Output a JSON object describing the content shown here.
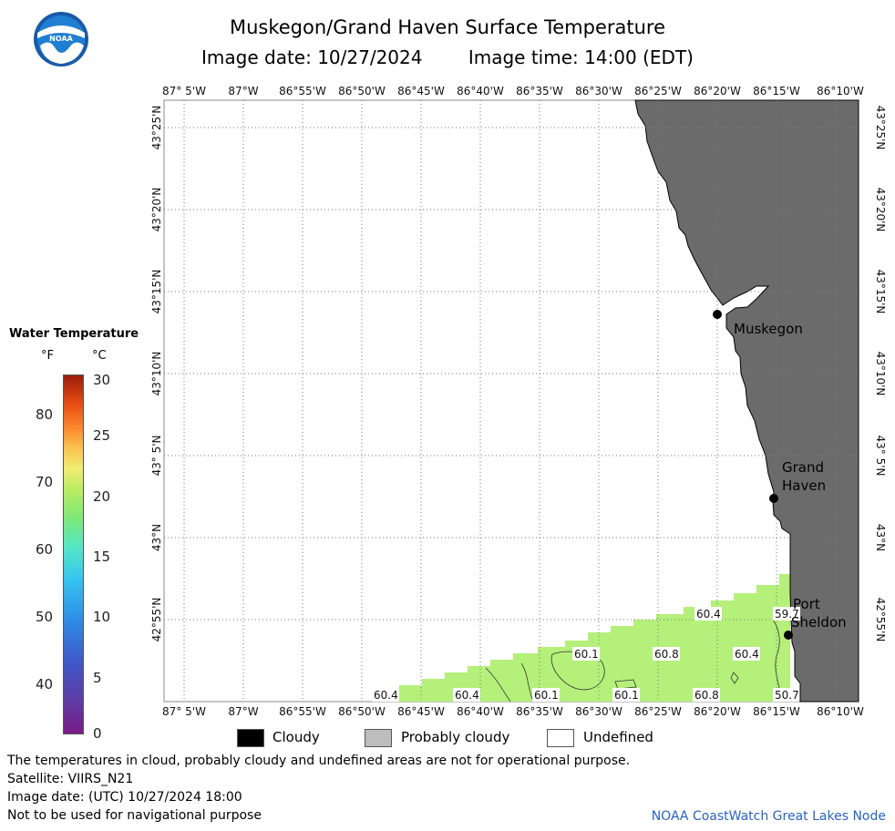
{
  "title": "Muskegon/Grand Haven Surface Temperature",
  "image_date": "Image date: 10/27/2024",
  "image_time": "Image time: 14:00 (EDT)",
  "logo_text": "NOAA",
  "lon_labels": [
    "87° 5'W",
    "87°W",
    "86°55'W",
    "86°50'W",
    "86°45'W",
    "86°40'W",
    "86°35'W",
    "86°30'W",
    "86°25'W",
    "86°20'W",
    "86°15'W",
    "86°10'W"
  ],
  "lat_labels": [
    "43°25'N",
    "43°20'N",
    "43°15'N",
    "43°10'N",
    "43° 5'N",
    "43°N",
    "42°55'N"
  ],
  "places": [
    {
      "name": "Muskegon"
    },
    {
      "name": "Grand\nHaven"
    },
    {
      "name": "Port\nSheldon"
    }
  ],
  "contour_labels": [
    "60.4",
    "59.7",
    "60.1",
    "60.8",
    "60.4",
    "60.4",
    "60.4",
    "60.1",
    "60.1",
    "60.8",
    "50.7"
  ],
  "legend": {
    "title": "Water Temperature",
    "unit_f": "°F",
    "unit_c": "°C",
    "ticks_f": [
      "80",
      "70",
      "60",
      "50",
      "40"
    ],
    "ticks_c": [
      "30",
      "25",
      "20",
      "15",
      "10",
      "5",
      "0"
    ]
  },
  "categories": [
    "Cloudy",
    "Probably cloudy",
    "Undefined"
  ],
  "colors": {
    "land": "#6b6b6b",
    "water_warm": "#b5f07a",
    "cloudy": "#000000",
    "probably_cloudy": "#bdbdbd",
    "undefined": "#ffffff",
    "credit": "#2a63c3"
  },
  "footer": [
    "The temperatures in cloud, probably cloudy and undefined areas are not for operational purpose.",
    "Satellite: VIIRS_N21",
    "Image date: (UTC) 10/27/2024  18:00",
    "Not to be used for navigational purpose"
  ],
  "credit": "NOAA CoastWatch Great Lakes Node"
}
